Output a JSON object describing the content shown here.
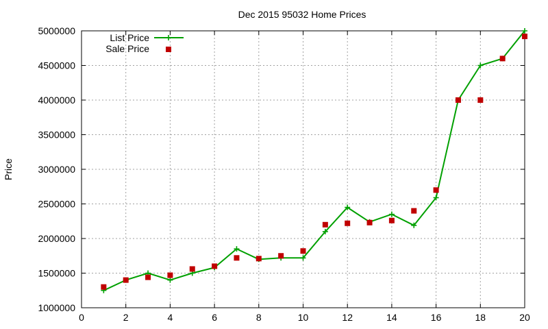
{
  "chart_data": {
    "type": "line",
    "title": "Dec 2015 95032 Home Prices",
    "xlabel": "",
    "ylabel": "Price",
    "xlim": [
      0,
      20
    ],
    "ylim": [
      1000000,
      5000000
    ],
    "xticks": [
      "0",
      "2",
      "4",
      "6",
      "8",
      "10",
      "12",
      "14",
      "16",
      "18",
      "20"
    ],
    "yticks": [
      "1000000",
      "1500000",
      "2000000",
      "2500000",
      "3000000",
      "3500000",
      "4000000",
      "4500000",
      "5000000"
    ],
    "grid": true,
    "legend_position": "top-left",
    "series": [
      {
        "name": "List Price",
        "style": "line-plus",
        "color": "#00a000",
        "x": [
          1,
          2,
          3,
          4,
          5,
          6,
          7,
          8,
          9,
          10,
          11,
          12,
          13,
          14,
          15,
          16,
          17,
          18,
          19,
          20
        ],
        "y": [
          1250000,
          1400000,
          1500000,
          1400000,
          1500000,
          1580000,
          1850000,
          1700000,
          1720000,
          1720000,
          2100000,
          2450000,
          2240000,
          2350000,
          2190000,
          2590000,
          4000000,
          4500000,
          4600000,
          5000000
        ]
      },
      {
        "name": "Sale Price",
        "style": "square",
        "color": "#c00000",
        "x": [
          1,
          2,
          3,
          4,
          5,
          6,
          7,
          8,
          9,
          10,
          11,
          12,
          13,
          14,
          15,
          16,
          17,
          18,
          19,
          20
        ],
        "y": [
          1300000,
          1400000,
          1440000,
          1470000,
          1560000,
          1600000,
          1720000,
          1710000,
          1750000,
          1820000,
          2200000,
          2220000,
          2230000,
          2260000,
          2400000,
          2700000,
          4000000,
          4000000,
          4600000,
          4920000
        ]
      }
    ]
  }
}
